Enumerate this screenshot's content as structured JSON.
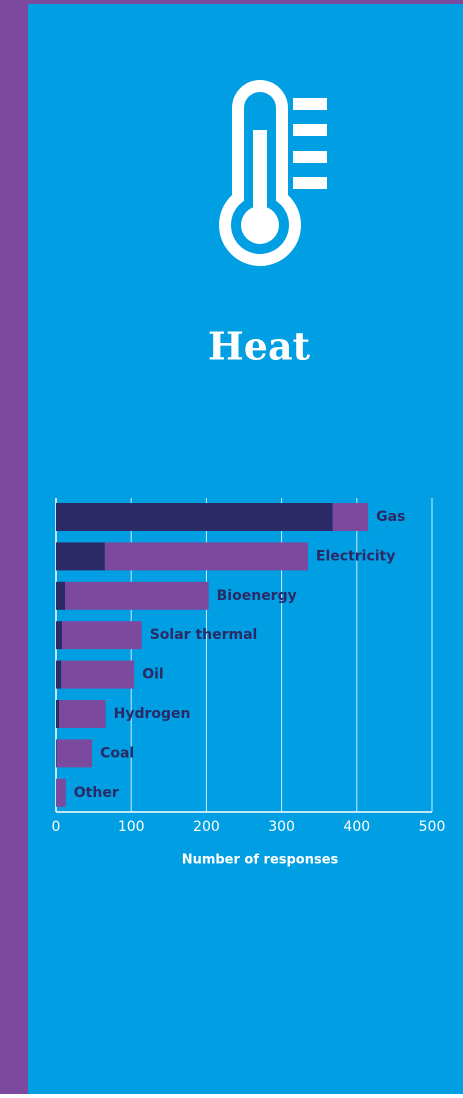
{
  "title": "Heat",
  "chart_data": {
    "type": "bar",
    "orientation": "horizontal",
    "stacked": true,
    "categories": [
      "Gas",
      "Electricity",
      "Bioenergy",
      "Solar thermal",
      "Oil",
      "Hydrogen",
      "Coal",
      "Other"
    ],
    "series": [
      {
        "color": "#2b2a66",
        "values": [
          368,
          65,
          12,
          8,
          7,
          4,
          1,
          0
        ]
      },
      {
        "color": "#7b4a9e",
        "values": [
          47,
          270,
          191,
          106,
          97,
          62,
          47,
          13
        ]
      }
    ],
    "xlim": [
      0,
      500
    ],
    "xticks": [
      0,
      100,
      200,
      300,
      400,
      500
    ],
    "xlabel": "Number of responses",
    "grid": true
  }
}
